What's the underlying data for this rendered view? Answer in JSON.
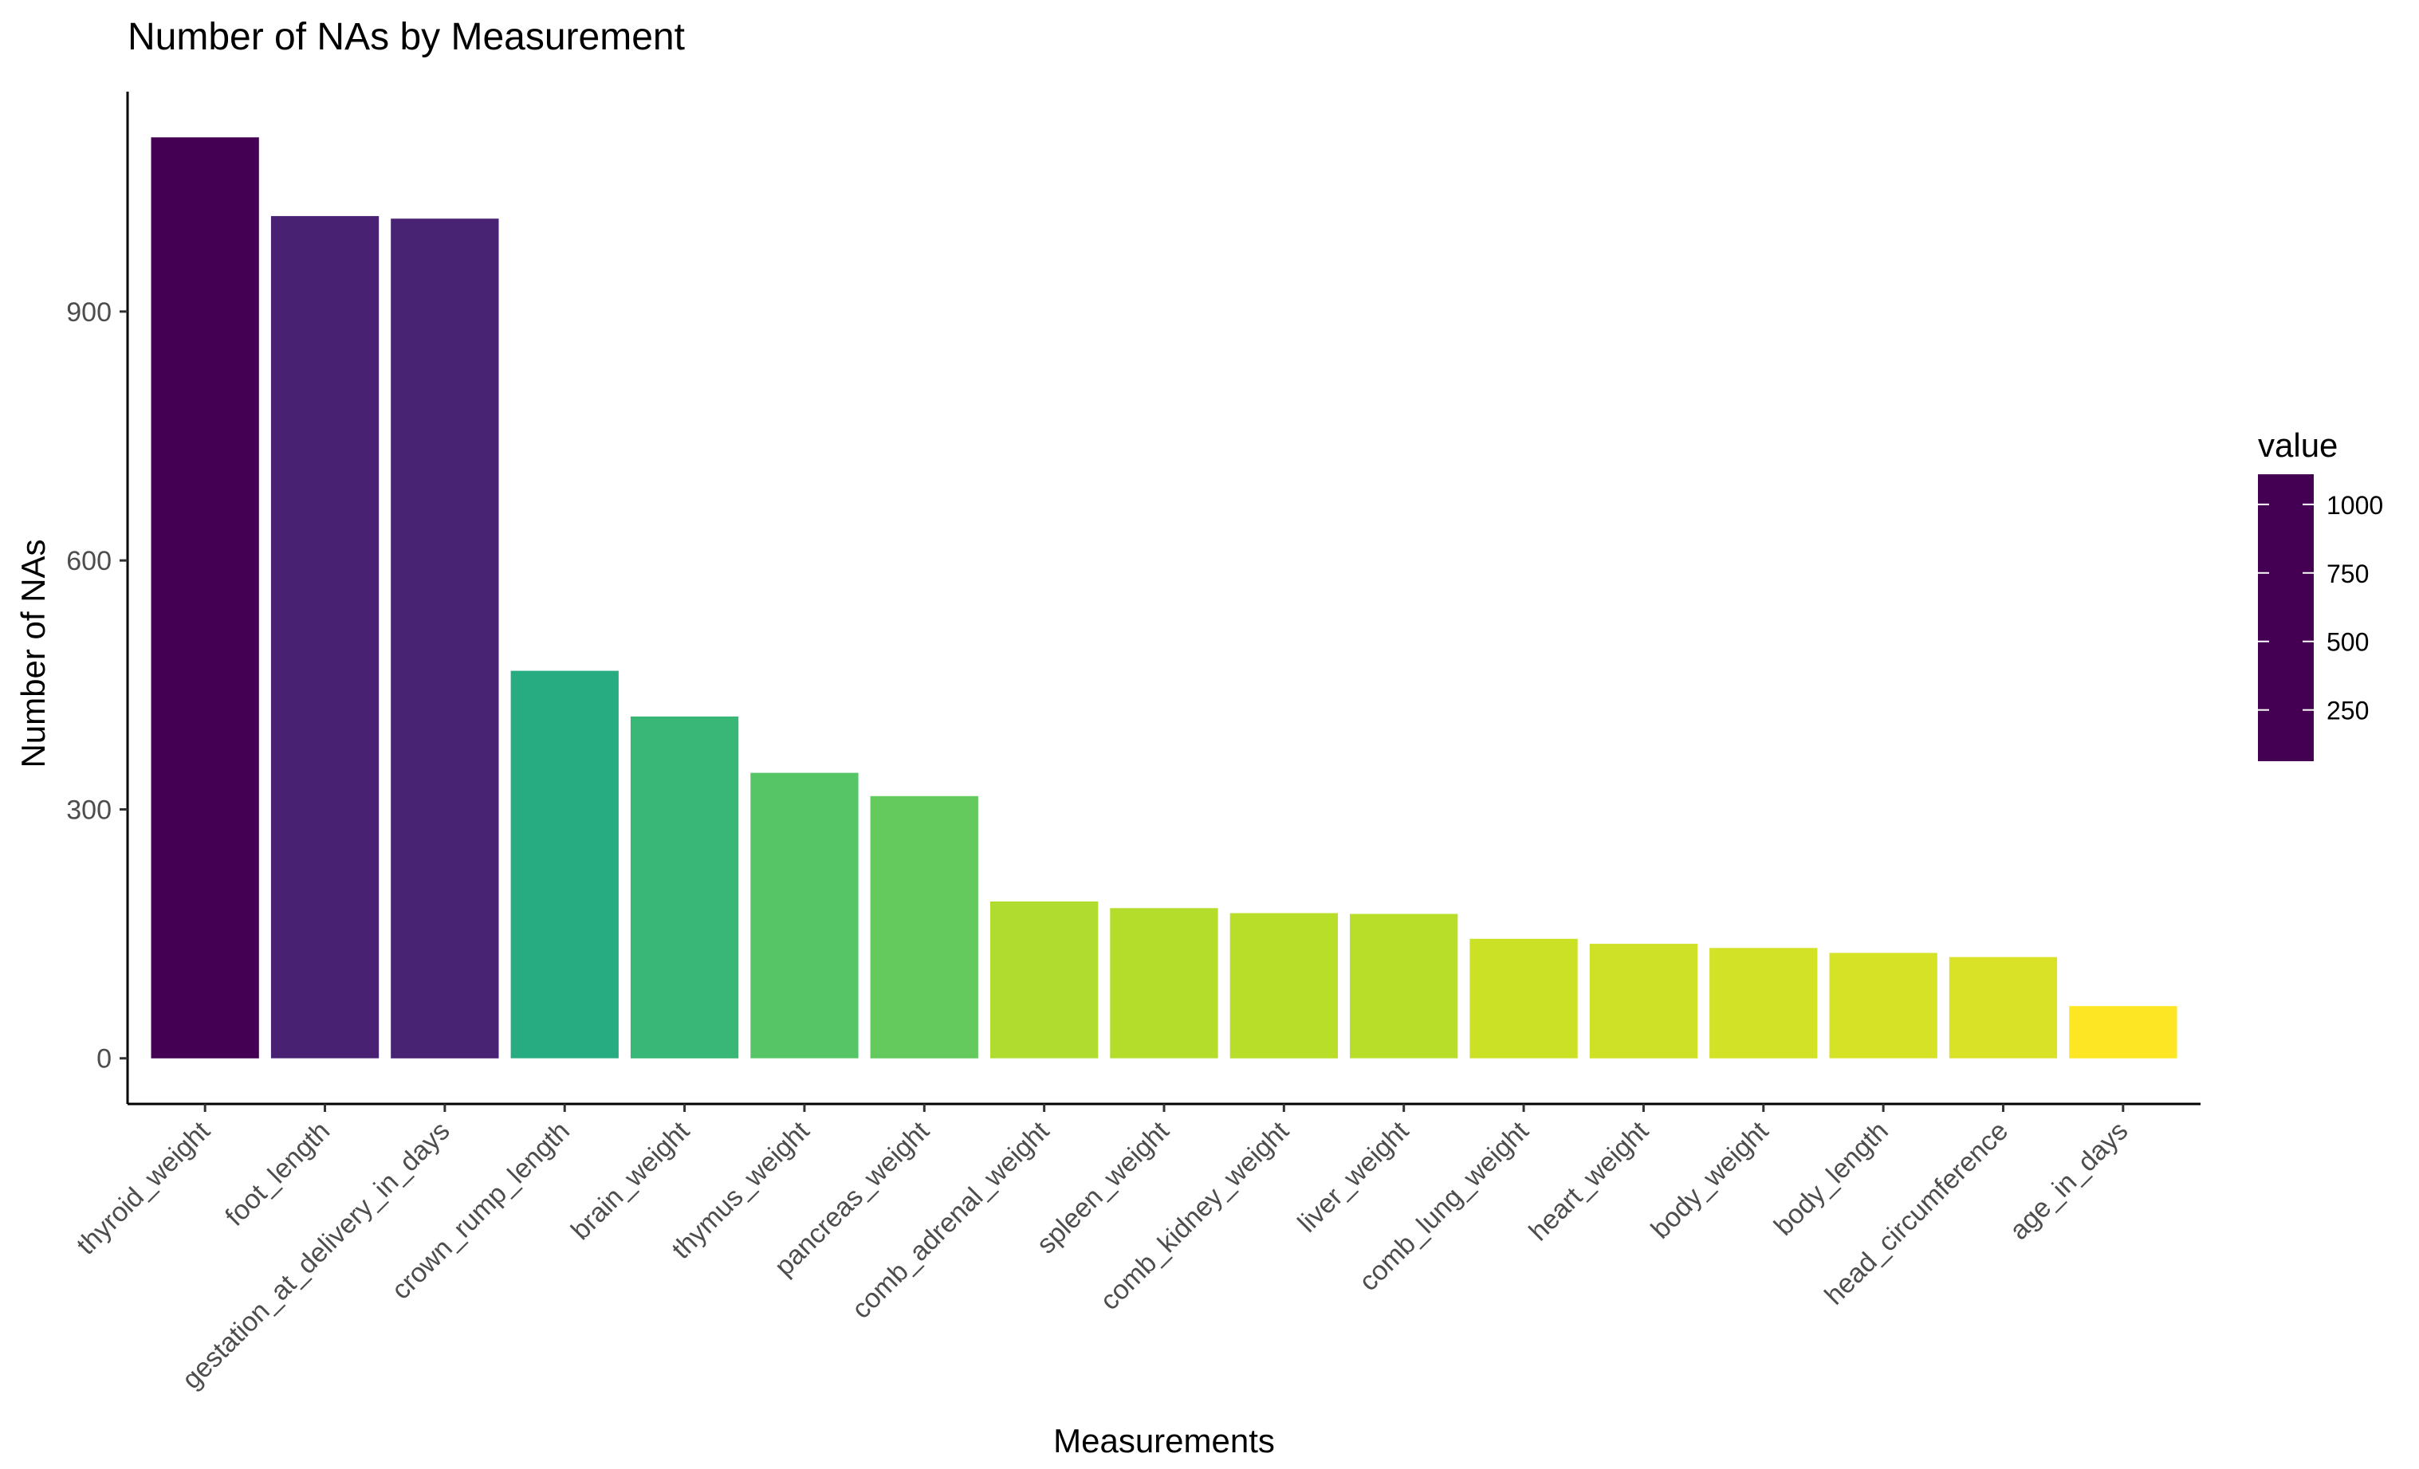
{
  "chart_data": {
    "type": "bar",
    "title": "Number of NAs by Measurement",
    "xlabel": "Measurements",
    "ylabel": "Number of NAs",
    "categories": [
      "thyroid_weight",
      "foot_length",
      "gestation_at_delivery_in_days",
      "crown_rump_length",
      "brain_weight",
      "thymus_weight",
      "pancreas_weight",
      "comb_adrenal_weight",
      "spleen_weight",
      "comb_kidney_weight",
      "liver_weight",
      "comb_lung_weight",
      "heart_weight",
      "body_weight",
      "body_length",
      "head_circumference",
      "age_in_days"
    ],
    "values": [
      1110,
      1015,
      1012,
      467,
      412,
      344,
      316,
      189,
      181,
      175,
      174,
      144,
      138,
      133,
      127,
      122,
      63
    ],
    "ylim": [
      -55,
      1165
    ],
    "yticks": [
      0,
      300,
      600,
      900
    ],
    "ytick_labels": [
      "0",
      "300",
      "600",
      "900"
    ],
    "grid": false,
    "legend": {
      "title": "value",
      "position": "right",
      "colorscale": "viridis",
      "range": [
        63,
        1110
      ],
      "ticks": [
        250,
        500,
        750,
        1000
      ],
      "tick_labels": [
        "250",
        "500",
        "750",
        "1000"
      ]
    }
  }
}
